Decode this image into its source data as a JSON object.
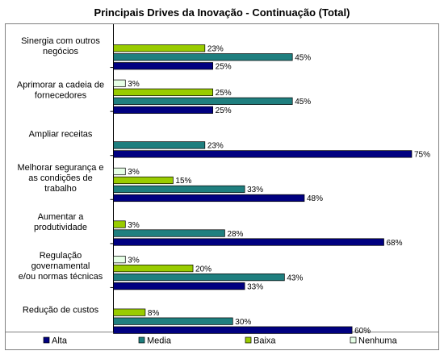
{
  "chart_data": {
    "type": "bar",
    "orientation": "horizontal",
    "title": "Principais Drives da Inovação - Continuação (Total)",
    "xlabel": "",
    "ylabel": "",
    "xlim": [
      0,
      75
    ],
    "grid": false,
    "legend_position": "bottom",
    "categories": [
      [
        "Sinergia com outros",
        "negócios"
      ],
      [
        "Aprimorar a cadeia de",
        "fornecedores"
      ],
      [
        "Ampliar receitas"
      ],
      [
        "Melhorar segurança e",
        "as condições de",
        "trabalho"
      ],
      [
        "Aumentar a",
        "produtividade"
      ],
      [
        "Regulação",
        "governamental",
        "e/ou normas técnicas"
      ],
      [
        "Redução de custos"
      ]
    ],
    "series": [
      {
        "name": "Nenhuma",
        "color": "#e6ffe6",
        "values": [
          null,
          3,
          null,
          3,
          null,
          3,
          null
        ]
      },
      {
        "name": "Baixa",
        "color": "#99cc00",
        "values": [
          23,
          25,
          null,
          15,
          3,
          20,
          8
        ]
      },
      {
        "name": "Media",
        "color": "#1f7f7f",
        "values": [
          45,
          45,
          23,
          33,
          28,
          43,
          30
        ]
      },
      {
        "name": "Alta",
        "color": "#000080",
        "values": [
          25,
          25,
          75,
          48,
          68,
          33,
          60
        ]
      }
    ],
    "legend": [
      "Alta",
      "Media",
      "Baixa",
      "Nenhuma"
    ],
    "value_suffix": "%"
  }
}
